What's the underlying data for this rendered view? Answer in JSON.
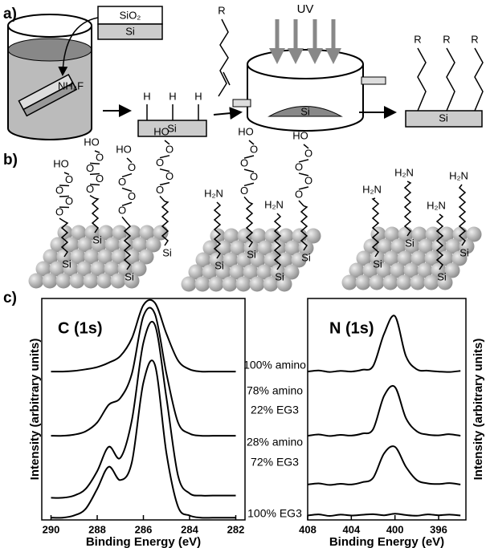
{
  "panel_a": {
    "label": "a)",
    "texts": {
      "sio2": "SiO₂",
      "si_top": "Si",
      "nh4f": "NH₄F",
      "h": [
        "H",
        "H",
        "H"
      ],
      "si_h": "Si",
      "r_alkene": "R",
      "uv": "UV",
      "si_reactor": "Si",
      "r_product": [
        "R",
        "R",
        "R"
      ],
      "si_product": "Si"
    }
  },
  "panel_b": {
    "label": "b)",
    "surfaces": [
      {
        "chains": [
          {
            "head": "HO",
            "oxygens": [
              "O",
              "O",
              "O",
              "O"
            ],
            "anchor": "Si"
          },
          {
            "head": "HO",
            "oxygens": [
              "O",
              "O",
              "O",
              "O"
            ],
            "anchor": "Si"
          },
          {
            "head": "HO",
            "oxygens": [
              "O",
              "O",
              "O",
              "O"
            ],
            "anchor": "Si"
          },
          {
            "head": "HO",
            "oxygens": [
              "O",
              "O",
              "O",
              "O"
            ],
            "anchor": "Si"
          }
        ]
      },
      {
        "chains": [
          {
            "head": "H₂N",
            "oxygens": [],
            "anchor": "Si"
          },
          {
            "head": "HO",
            "oxygens": [
              "O",
              "O",
              "O",
              "O"
            ],
            "anchor": "Si"
          },
          {
            "head": "H₂N",
            "oxygens": [],
            "anchor": "Si"
          },
          {
            "head": "HO",
            "oxygens": [
              "O",
              "O",
              "O",
              "O"
            ],
            "anchor": "Si"
          }
        ]
      },
      {
        "chains": [
          {
            "head": "H₂N",
            "oxygens": [],
            "anchor": "Si"
          },
          {
            "head": "H₂N",
            "oxygens": [],
            "anchor": "Si"
          },
          {
            "head": "H₂N",
            "oxygens": [],
            "anchor": "Si"
          },
          {
            "head": "H₂N",
            "oxygens": [],
            "anchor": "Si"
          }
        ]
      }
    ]
  },
  "panel_c": {
    "label": "c)"
  },
  "chart_data": [
    {
      "type": "line",
      "title": "C (1s)",
      "x_label": "Binding Energy (eV)",
      "y_label": "Intensity  (arbitrary units)",
      "x": [
        290,
        289.5,
        289,
        288.5,
        288,
        287.5,
        287,
        286.5,
        286,
        285.5,
        285,
        284.5,
        284,
        283.5,
        283,
        282.5,
        282
      ],
      "xlim": [
        290.4,
        281.6
      ],
      "xticks": [
        290,
        288,
        286,
        284,
        282
      ],
      "ylim": [
        0,
        100
      ],
      "series": [
        {
          "name": [
            "100% amino"
          ],
          "color": "#000000",
          "values": [
            67,
            67,
            67.3,
            68,
            69,
            71,
            74,
            82,
            97,
            98,
            84,
            72,
            68,
            67,
            67,
            67,
            67
          ]
        },
        {
          "name": [
            "78% amino",
            "22% EG3"
          ],
          "color": "#000000",
          "values": [
            38,
            38,
            38.5,
            40,
            44,
            52,
            55,
            66,
            92,
            93,
            66,
            44,
            39,
            38,
            38,
            38,
            38
          ]
        },
        {
          "name": [
            "28% amino",
            "72% EG3"
          ],
          "color": "#000000",
          "values": [
            10,
            10,
            11,
            14,
            22,
            33,
            28,
            45,
            80,
            88,
            55,
            20,
            12,
            11,
            11,
            11,
            11
          ]
        },
        {
          "name": [
            "100% EG3"
          ],
          "color": "#000000",
          "values": [
            1,
            1,
            2,
            5,
            14,
            24,
            18,
            26,
            62,
            70,
            30,
            6,
            2,
            1,
            1,
            1,
            1
          ]
        }
      ]
    },
    {
      "type": "line",
      "title": "N (1s)",
      "x_label": "Binding Energy (eV)",
      "y_label": "Intensity  (arbitrary units)",
      "x": [
        408,
        407,
        406,
        405,
        404,
        403,
        402,
        401,
        400,
        399,
        398,
        397,
        396,
        395,
        394
      ],
      "xlim": [
        408,
        393.5
      ],
      "xticks": [
        408,
        404,
        400,
        396
      ],
      "ylim": [
        0,
        100
      ],
      "series": [
        {
          "color": "#000000",
          "values": [
            67,
            67.5,
            66.8,
            67.3,
            67,
            67.8,
            69.5,
            84,
            92,
            74,
            68,
            67.4,
            67,
            66.8,
            67.3
          ]
        },
        {
          "color": "#000000",
          "values": [
            38,
            38.6,
            37.9,
            38.4,
            38.1,
            39,
            41,
            56,
            60,
            46,
            40,
            38.5,
            38.2,
            38.7,
            38
          ]
        },
        {
          "color": "#000000",
          "values": [
            16,
            16.5,
            15.8,
            16.3,
            16,
            17,
            19,
            30,
            33,
            24,
            18,
            16.5,
            16.2,
            16.6,
            16
          ]
        },
        {
          "color": "#000000",
          "values": [
            2,
            2.5,
            1.8,
            2.4,
            2,
            2.3,
            2.6,
            2.1,
            2.8,
            2.2,
            1.9,
            2.5,
            2.1,
            2.4,
            2
          ]
        }
      ]
    }
  ]
}
